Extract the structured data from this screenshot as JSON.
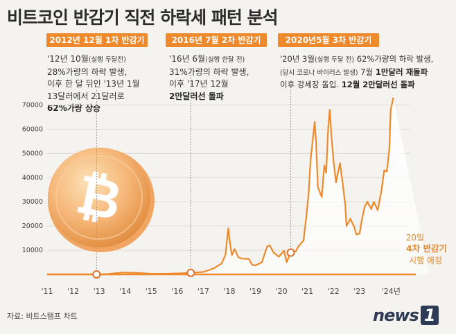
{
  "title": "비트코인 반감기 직전 하락세 패턴 분석",
  "source": "자료: 비트스탬프 차트",
  "logo": {
    "text": "news",
    "mark": "1"
  },
  "halvings": [
    {
      "label": "2012년 12월 1차 반감기",
      "lines": [
        [
          {
            "t": "'12년 10월"
          },
          {
            "t": "(실행 두달전)",
            "s": 1
          }
        ],
        [
          {
            "t": "28%가량의 하락 발생,"
          }
        ],
        [
          {
            "t": "이후 한 달 뒤인 '13년 1월"
          }
        ],
        [
          {
            "t": "13달러에서 21달러로"
          }
        ],
        [
          {
            "t": "62%가량 상승",
            "b": 1
          }
        ]
      ]
    },
    {
      "label": "2016년 7월 2차 반감기",
      "lines": [
        [
          {
            "t": "'16년 6월"
          },
          {
            "t": "(실행 한달 전)",
            "s": 1
          }
        ],
        [
          {
            "t": "31%가량의 하락 발생,"
          }
        ],
        [
          {
            "t": "이후 '17년 12월"
          }
        ],
        [
          {
            "t": "2만달러선 돌파",
            "b": 1
          }
        ]
      ]
    },
    {
      "label": "2020년5월 3차 반감기",
      "lines": [
        [
          {
            "t": "'20년 3월"
          },
          {
            "t": "(실행 두달 전)",
            "s": 1
          },
          {
            "t": " 62%가량의 하락 발생,"
          }
        ],
        [
          {
            "t": "(당시 코로나 바이러스 발생)",
            "s": 1
          },
          {
            "t": " 7월 "
          },
          {
            "t": "1만달러 재돌파",
            "b": 1
          }
        ],
        [
          {
            "t": "이후 강세장 돌입. "
          },
          {
            "t": "12월 2만달러선 돌파",
            "b": 1
          }
        ]
      ]
    }
  ],
  "upcoming": {
    "line1": "20일",
    "line2": "4차 반감기",
    "line3": "시행 예정"
  },
  "chart_data": {
    "type": "area",
    "xlabel": "",
    "ylabel": "",
    "x_tick_labels": [
      "'11",
      "'12",
      "'13",
      "'14",
      "'15",
      "'16",
      "'17",
      "'18",
      "'19",
      "'20",
      "'21",
      "'22",
      "'23",
      "'24년"
    ],
    "x_ticks": [
      2011,
      2012,
      2013,
      2014,
      2015,
      2016,
      2017,
      2018,
      2019,
      2020,
      2021,
      2022,
      2023,
      2024
    ],
    "y_ticks": [
      10000,
      20000,
      30000,
      40000,
      50000,
      60000,
      70000
    ],
    "y_tick_labels": [
      "10000",
      "20000",
      "30000",
      "40000",
      "50000",
      "60000",
      "70000"
    ],
    "xlim": [
      2011,
      2024.95
    ],
    "ylim": [
      0,
      73000
    ],
    "halving_markers": [
      {
        "x": 2012.9,
        "y": 12
      },
      {
        "x": 2016.52,
        "y": 650
      },
      {
        "x": 2020.36,
        "y": 9000
      }
    ],
    "series": [
      {
        "points": [
          [
            2011.0,
            1
          ],
          [
            2012.0,
            5
          ],
          [
            2012.9,
            12
          ],
          [
            2013.3,
            120
          ],
          [
            2013.9,
            800
          ],
          [
            2014.5,
            600
          ],
          [
            2015.0,
            250
          ],
          [
            2015.5,
            250
          ],
          [
            2016.0,
            400
          ],
          [
            2016.52,
            650
          ],
          [
            2017.0,
            1000
          ],
          [
            2017.4,
            2500
          ],
          [
            2017.7,
            4500
          ],
          [
            2017.85,
            8000
          ],
          [
            2017.96,
            19000
          ],
          [
            2018.05,
            11000
          ],
          [
            2018.1,
            8000
          ],
          [
            2018.2,
            10500
          ],
          [
            2018.35,
            7000
          ],
          [
            2018.5,
            6500
          ],
          [
            2018.75,
            6400
          ],
          [
            2018.87,
            4000
          ],
          [
            2019.0,
            3700
          ],
          [
            2019.25,
            5000
          ],
          [
            2019.45,
            11500
          ],
          [
            2019.55,
            12000
          ],
          [
            2019.7,
            9000
          ],
          [
            2019.9,
            7300
          ],
          [
            2020.1,
            9800
          ],
          [
            2020.2,
            5000
          ],
          [
            2020.3,
            7500
          ],
          [
            2020.36,
            9000
          ],
          [
            2020.55,
            9500
          ],
          [
            2020.65,
            11500
          ],
          [
            2020.85,
            14000
          ],
          [
            2020.96,
            24000
          ],
          [
            2021.05,
            34000
          ],
          [
            2021.12,
            47000
          ],
          [
            2021.28,
            63000
          ],
          [
            2021.33,
            55000
          ],
          [
            2021.4,
            36000
          ],
          [
            2021.55,
            32000
          ],
          [
            2021.65,
            45000
          ],
          [
            2021.72,
            42000
          ],
          [
            2021.8,
            61000
          ],
          [
            2021.86,
            68000
          ],
          [
            2021.92,
            57000
          ],
          [
            2022.0,
            47000
          ],
          [
            2022.1,
            38000
          ],
          [
            2022.25,
            46000
          ],
          [
            2022.35,
            38000
          ],
          [
            2022.45,
            29000
          ],
          [
            2022.5,
            20000
          ],
          [
            2022.65,
            23000
          ],
          [
            2022.8,
            19500
          ],
          [
            2022.88,
            16500
          ],
          [
            2023.0,
            16800
          ],
          [
            2023.1,
            23000
          ],
          [
            2023.2,
            28000
          ],
          [
            2023.3,
            30000
          ],
          [
            2023.45,
            27000
          ],
          [
            2023.55,
            30000
          ],
          [
            2023.7,
            26500
          ],
          [
            2023.85,
            35000
          ],
          [
            2023.95,
            43000
          ],
          [
            2024.05,
            42500
          ],
          [
            2024.15,
            52000
          ],
          [
            2024.2,
            68000
          ],
          [
            2024.3,
            73000
          ]
        ]
      }
    ]
  }
}
